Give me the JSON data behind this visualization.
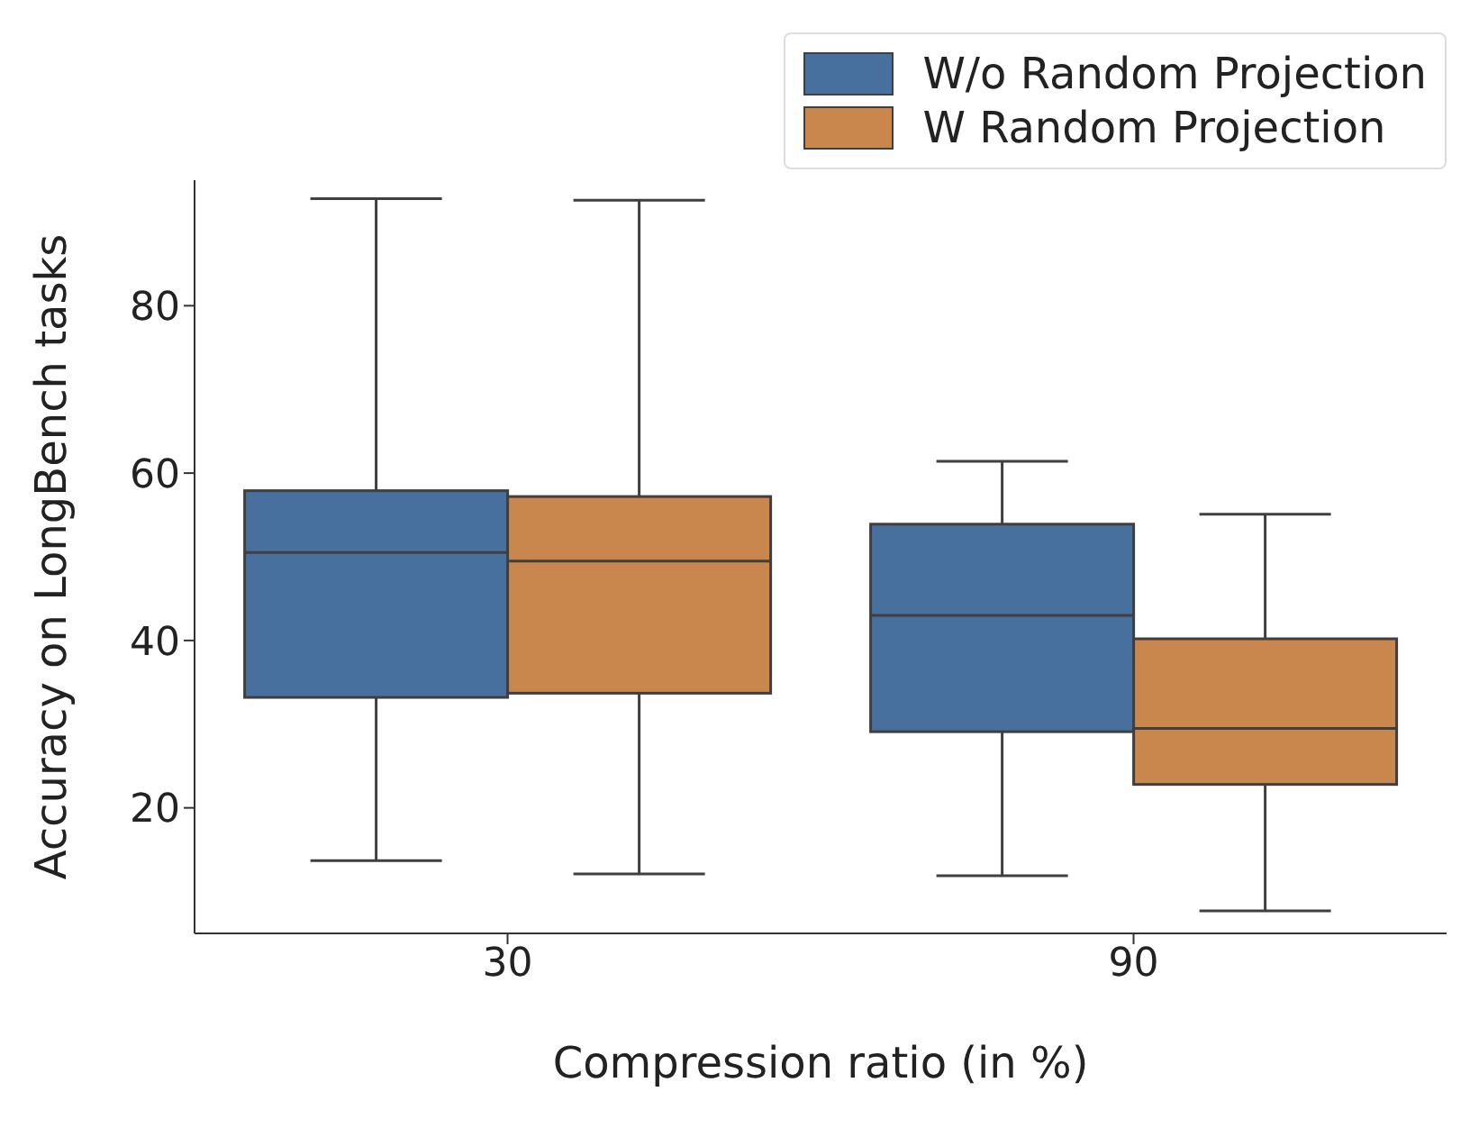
{
  "chart_data": {
    "type": "box",
    "xlabel": "Compression ratio (in %)",
    "ylabel": "Accuracy on LongBench tasks",
    "categories": [
      "30",
      "90"
    ],
    "ylim": [
      5,
      95
    ],
    "yticks": [
      20,
      40,
      60,
      80
    ],
    "legend": "top right",
    "series": [
      {
        "name": "W/o Random Projection",
        "color": "#48709e",
        "boxes": [
          {
            "low": 13.7,
            "q1": 33.2,
            "median": 50.5,
            "q3": 57.9,
            "high": 92.8
          },
          {
            "low": 11.9,
            "q1": 29.1,
            "median": 43.0,
            "q3": 53.9,
            "high": 61.4
          }
        ]
      },
      {
        "name": "W Random Projection",
        "color": "#c9874d",
        "boxes": [
          {
            "low": 12.1,
            "q1": 33.7,
            "median": 49.5,
            "q3": 57.2,
            "high": 92.6
          },
          {
            "low": 7.7,
            "q1": 22.8,
            "median": 29.5,
            "q3": 40.2,
            "high": 55.1
          }
        ]
      }
    ]
  }
}
